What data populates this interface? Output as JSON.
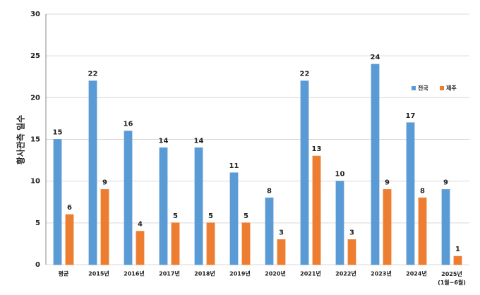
{
  "chart_data": {
    "type": "bar",
    "y_label": "황사관측 일수",
    "categories": [
      "평균",
      "2015년",
      "2016년",
      "2017년",
      "2018년",
      "2019년",
      "2020년",
      "2021년",
      "2022년",
      "2023년",
      "2024년",
      "2025년\n(1월~6월)"
    ],
    "series": [
      {
        "name": "전국",
        "color": "#5b9bd5",
        "values": [
          15,
          22,
          16,
          14,
          14,
          11,
          8,
          22,
          10,
          24,
          17,
          9
        ]
      },
      {
        "name": "제주",
        "color": "#ed7d31",
        "values": [
          6,
          9,
          4,
          5,
          5,
          5,
          3,
          13,
          3,
          9,
          8,
          1
        ]
      }
    ],
    "ylim": [
      0,
      30
    ],
    "yticks": [
      0,
      5,
      10,
      15,
      20,
      25,
      30
    ],
    "grid": true,
    "legend": "upper right"
  }
}
